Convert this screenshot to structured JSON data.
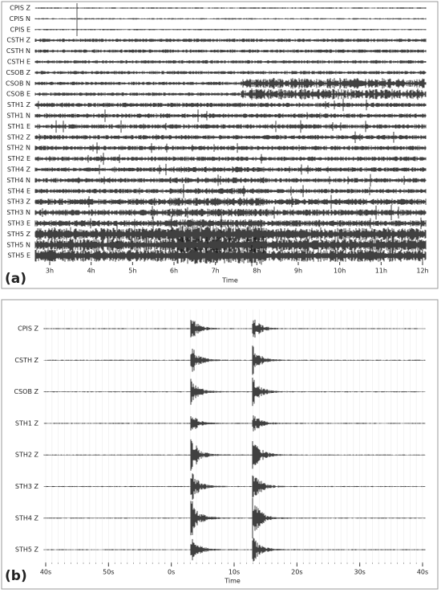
{
  "panel_a": {
    "label": "(a)",
    "axis_label": "Time",
    "channels": [
      "CPIS Z",
      "CPIS N",
      "CPIS E",
      "CSTH Z",
      "CSTH N",
      "CSTH E",
      "CSOB Z",
      "CSOB N",
      "CSOB E",
      "STH1 Z",
      "STH1 N",
      "STH1 E",
      "STH2 Z",
      "STH2 N",
      "STH2 E",
      "STH4 Z",
      "STH4 N",
      "STH4 E",
      "STH3 Z",
      "STH3 N",
      "STH3 E",
      "STH5 Z",
      "STH5 N",
      "STH5 E"
    ],
    "ticks": [
      "3h",
      "4h",
      "5h",
      "6h",
      "7h",
      "8h",
      "9h",
      "10h",
      "11h",
      "12h"
    ]
  },
  "panel_b": {
    "label": "(b)",
    "axis_label": "Time",
    "channels": [
      "CPIS Z",
      "CSTH Z",
      "CSOB Z",
      "STH1 Z",
      "STH2 Z",
      "STH3 Z",
      "STH4 Z",
      "STH5 Z"
    ],
    "ticks": [
      "40s",
      "50s",
      "0s",
      "10s",
      "20s",
      "30s",
      "40s"
    ]
  }
}
